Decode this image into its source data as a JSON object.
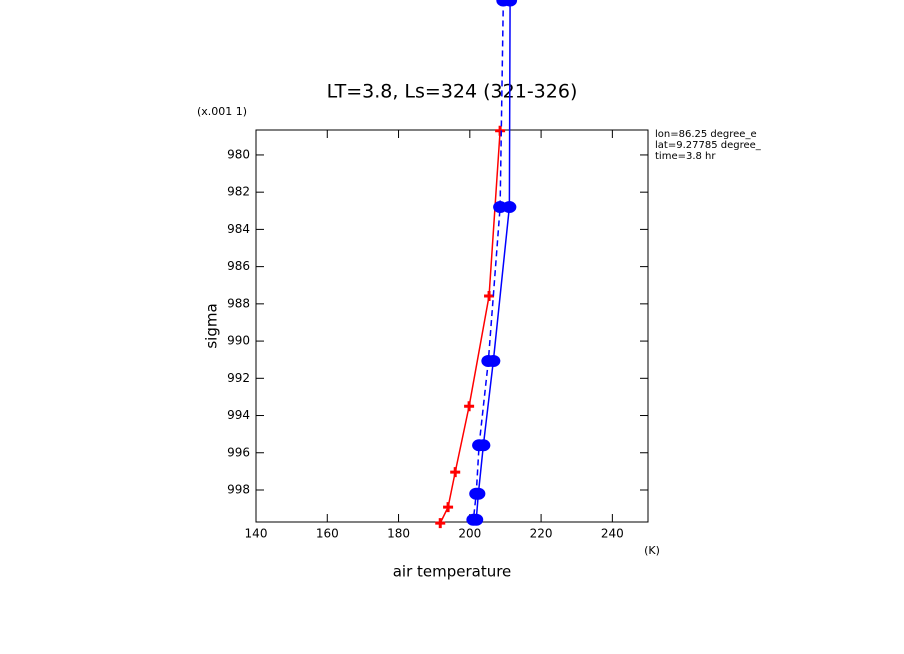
{
  "chart_data": {
    "type": "line",
    "title": "LT=3.8, Ls=324 (321-326)",
    "y_scale_note": "(x.001 1)",
    "ylabel": "sigma",
    "xlabel": "air temperature",
    "x_unit": "(K)",
    "annotations": [
      "lon=86.25 degree_e",
      "lat=9.27785 degree_",
      "time=3.8 hr"
    ],
    "xlim": [
      140,
      250
    ],
    "xticks": [
      140,
      160,
      180,
      200,
      220,
      240
    ],
    "ylim": [
      978.66,
      999.72
    ],
    "y_inverted": true,
    "yticks": [
      980,
      982,
      984,
      986,
      988,
      990,
      992,
      994,
      996,
      998
    ],
    "series": [
      {
        "color": "#ff0000",
        "marker": "plus",
        "dash": false,
        "x": [
          208.5,
          205.4,
          199.8,
          195.9,
          193.9,
          191.7
        ],
        "values": [
          978.7,
          987.58,
          993.5,
          997.04,
          998.92,
          999.78
        ]
      },
      {
        "color": "#0000ff",
        "marker": "circle",
        "dash": false,
        "x": [
          211.3,
          211.1,
          206.6,
          203.8,
          202.4,
          201.8
        ],
        "values": [
          971.7,
          982.8,
          991.07,
          995.6,
          998.2,
          999.6
        ]
      },
      {
        "color": "#0000ff",
        "marker": "circle",
        "dash": true,
        "x": [
          209.4,
          208.5,
          205.2,
          202.6,
          201.8,
          201
        ],
        "values": [
          971.7,
          982.8,
          991.07,
          995.6,
          998.2,
          999.6
        ]
      }
    ]
  }
}
